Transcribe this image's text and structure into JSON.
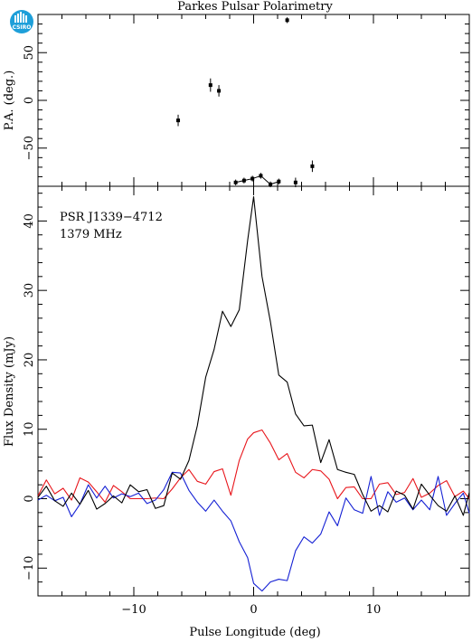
{
  "figure": {
    "title": "Parkes Pulsar Polarimetry",
    "logo_text": "CSIRO"
  },
  "colors": {
    "total_intensity": "#000000",
    "linear_polarization": "#e8151b",
    "circular_polarization": "#1420d4",
    "axes": "#000000",
    "logo": "#1e9fd9"
  },
  "chart_data": [
    {
      "type": "scatter",
      "panel": "position-angle",
      "title": "Parkes Pulsar Polarimetry",
      "xlabel": "",
      "ylabel": "P.A. (deg.)",
      "xlim": [
        -18,
        18
      ],
      "ylim": [
        -90,
        90
      ],
      "yticks": [
        -50,
        0,
        50
      ],
      "yticks_minor_step": 10,
      "points": [
        {
          "x": -6.3,
          "y": -21,
          "err": 6
        },
        {
          "x": -3.6,
          "y": 16,
          "err": 7
        },
        {
          "x": -2.9,
          "y": 10,
          "err": 6
        },
        {
          "x": -1.5,
          "y": -86,
          "err": 3
        },
        {
          "x": -0.8,
          "y": -84,
          "err": 3
        },
        {
          "x": -0.1,
          "y": -82,
          "err": 3
        },
        {
          "x": 0.6,
          "y": -79,
          "err": 3
        },
        {
          "x": 1.4,
          "y": -88,
          "err": 3
        },
        {
          "x": 2.1,
          "y": -85,
          "err": 3
        },
        {
          "x": 2.8,
          "y": 84,
          "err": 3
        },
        {
          "x": 3.5,
          "y": -86,
          "err": 5
        },
        {
          "x": 4.9,
          "y": -69,
          "err": 6
        }
      ],
      "connected_range": [
        -1.5,
        2.1
      ]
    },
    {
      "type": "line",
      "panel": "profile",
      "xlabel": "Pulse Longitude (deg)",
      "ylabel": "Flux Density (mJy)",
      "annotation": [
        "PSR J1339−4712",
        "1379 MHz"
      ],
      "xlim": [
        -18,
        18
      ],
      "ylim": [
        -14,
        45
      ],
      "xticks": [
        -10,
        0,
        10
      ],
      "xticks_minor_step": 2,
      "yticks": [
        -10,
        0,
        10,
        20,
        30,
        40
      ],
      "yticks_minor_step": 2,
      "x": [
        -18.0,
        -17.3,
        -16.6,
        -15.9,
        -15.2,
        -14.5,
        -13.8,
        -13.1,
        -12.4,
        -11.7,
        -11.0,
        -10.3,
        -9.6,
        -8.9,
        -8.2,
        -7.5,
        -6.8,
        -6.1,
        -5.4,
        -4.7,
        -4.0,
        -3.3,
        -2.6,
        -1.9,
        -1.2,
        -0.5,
        0.0,
        0.7,
        1.4,
        2.1,
        2.8,
        3.5,
        4.2,
        4.9,
        5.6,
        6.3,
        7.0,
        7.7,
        8.4,
        9.1,
        9.8,
        10.5,
        11.2,
        11.9,
        12.6,
        13.3,
        14.0,
        14.7,
        15.4,
        16.1,
        16.8,
        17.5,
        18.0
      ],
      "series": [
        {
          "name": "",
          "color_key": "total_intensity",
          "values": [
            0.2,
            1.8,
            -0.3,
            -1.1,
            0.8,
            -0.8,
            1.2,
            -1.5,
            -0.7,
            0.4,
            -0.6,
            2.0,
            1.0,
            1.3,
            -1.4,
            -1.0,
            3.7,
            2.8,
            5.5,
            10.5,
            17.5,
            21.5,
            27.0,
            24.8,
            27.2,
            37.2,
            43.5,
            32.0,
            25.5,
            17.8,
            16.8,
            12.2,
            10.5,
            10.6,
            5.2,
            8.5,
            4.2,
            3.8,
            3.5,
            0.6,
            -1.8,
            -1.0,
            -1.9,
            1.1,
            0.5,
            -1.5,
            2.1,
            0.5,
            -1.0,
            -1.8,
            0.4,
            -2.4,
            0.9
          ]
        },
        {
          "name": "",
          "color_key": "linear_polarization",
          "values": [
            0.4,
            2.7,
            0.7,
            1.5,
            -0.2,
            3.0,
            2.4,
            1.0,
            -0.5,
            1.9,
            1.0,
            0.0,
            0.0,
            0.0,
            0.1,
            0.0,
            1.4,
            3.0,
            4.2,
            2.5,
            2.1,
            3.9,
            4.3,
            0.5,
            5.5,
            8.6,
            9.5,
            9.9,
            8.0,
            5.6,
            6.5,
            3.8,
            3.0,
            4.2,
            4.0,
            2.8,
            0.0,
            1.6,
            1.7,
            0.0,
            0.0,
            2.1,
            2.3,
            0.6,
            0.9,
            2.9,
            0.2,
            0.8,
            1.9,
            2.6,
            0.3,
            1.1,
            0.0
          ]
        },
        {
          "name": "",
          "color_key": "circular_polarization",
          "values": [
            -0.2,
            0.5,
            -0.3,
            0.2,
            -2.6,
            -0.8,
            2.0,
            0.1,
            1.8,
            0.1,
            0.7,
            0.3,
            0.8,
            -0.7,
            -0.2,
            1.3,
            3.8,
            3.7,
            1.2,
            -0.5,
            -1.8,
            -0.2,
            -1.8,
            -3.2,
            -6.2,
            -8.5,
            -12.2,
            -13.3,
            -12.0,
            -11.6,
            -11.8,
            -7.5,
            -5.5,
            -6.4,
            -5.1,
            -1.9,
            -3.9,
            0.1,
            -1.6,
            -2.1,
            3.2,
            -2.4,
            1.0,
            -0.5,
            0.1,
            -1.6,
            -0.2,
            -1.6,
            3.2,
            -2.4,
            -0.7,
            0.8,
            -2.1
          ]
        }
      ]
    }
  ]
}
